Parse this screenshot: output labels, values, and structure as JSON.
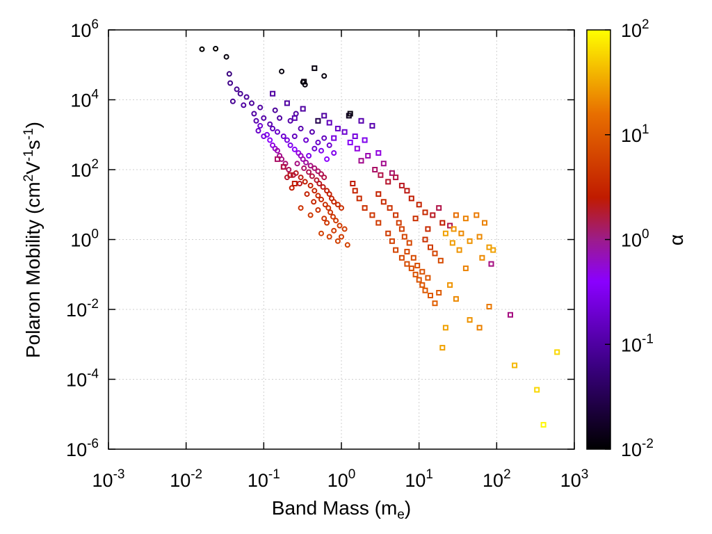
{
  "chart_data": {
    "type": "scatter",
    "xlabel": {
      "main": "Band Mass (m",
      "sub": "e",
      "close": ")"
    },
    "ylabel": {
      "main": "Polaron Mobility (cm",
      "sup1": "2",
      "mid1": "V",
      "sup2": "-1",
      "mid2": "s",
      "sup3": "-1",
      "close": ")"
    },
    "colorbar_label": "α",
    "x_scale": "log",
    "y_scale": "log",
    "xlim": [
      0.001,
      1000
    ],
    "ylim": [
      1e-06,
      1000000
    ],
    "color_scale": "log",
    "color_lim": [
      0.01,
      100
    ],
    "colormap": [
      "#000000",
      "#3b0082",
      "#8a00ff",
      "#c01b00",
      "#e86f00",
      "#ffff00"
    ],
    "grid": true,
    "x_ticks": [
      {
        "base": "10",
        "exp": "-3"
      },
      {
        "base": "10",
        "exp": "-2"
      },
      {
        "base": "10",
        "exp": "-1"
      },
      {
        "base": "10",
        "exp": "0"
      },
      {
        "base": "10",
        "exp": "1"
      },
      {
        "base": "10",
        "exp": "2"
      },
      {
        "base": "10",
        "exp": "3"
      }
    ],
    "y_ticks": [
      {
        "base": "10",
        "exp": "-6"
      },
      {
        "base": "10",
        "exp": "-4"
      },
      {
        "base": "10",
        "exp": "-2"
      },
      {
        "base": "10",
        "exp": "0"
      },
      {
        "base": "10",
        "exp": "2"
      },
      {
        "base": "10",
        "exp": "4"
      },
      {
        "base": "10",
        "exp": "6"
      }
    ],
    "color_ticks": [
      {
        "base": "10",
        "exp": "-2"
      },
      {
        "base": "10",
        "exp": "-1"
      },
      {
        "base": "10",
        "exp": "0"
      },
      {
        "base": "10",
        "exp": "1"
      },
      {
        "base": "10",
        "exp": "2"
      }
    ],
    "series": [
      {
        "marker": "circle",
        "points": [
          [
            0.016,
            280000,
            0.01
          ],
          [
            0.024,
            290000,
            0.01
          ],
          [
            0.033,
            170000,
            0.012
          ],
          [
            0.17,
            65000,
            0.012
          ],
          [
            0.6,
            48000,
            0.012
          ],
          [
            0.32,
            32000,
            0.012
          ],
          [
            0.34,
            27000,
            0.012
          ],
          [
            0.036,
            55000,
            0.06
          ],
          [
            0.037,
            30000,
            0.07
          ],
          [
            0.045,
            20000,
            0.08
          ],
          [
            0.05,
            15000,
            0.08
          ],
          [
            0.06,
            12000,
            0.09
          ],
          [
            0.04,
            9000,
            0.08
          ],
          [
            0.055,
            7000,
            0.1
          ],
          [
            0.07,
            8000,
            0.09
          ],
          [
            0.09,
            6000,
            0.1
          ],
          [
            0.075,
            4000,
            0.1
          ],
          [
            0.1,
            3000,
            0.11
          ],
          [
            0.08,
            2500,
            0.12
          ],
          [
            0.12,
            2000,
            0.12
          ],
          [
            0.13,
            1500,
            0.15
          ],
          [
            0.15,
            1200,
            0.18
          ],
          [
            0.18,
            900,
            0.2
          ],
          [
            0.2,
            700,
            0.25
          ],
          [
            0.22,
            500,
            0.3
          ],
          [
            0.25,
            380,
            0.4
          ],
          [
            0.28,
            300,
            0.5
          ],
          [
            0.3,
            250,
            0.6
          ],
          [
            0.32,
            200,
            0.7
          ],
          [
            0.35,
            160,
            0.8
          ],
          [
            0.4,
            130,
            1.0
          ],
          [
            0.45,
            110,
            1.1
          ],
          [
            0.5,
            90,
            1.2
          ],
          [
            0.55,
            75,
            1.4
          ],
          [
            0.6,
            60,
            1.5
          ],
          [
            0.27,
            150,
            1.0
          ],
          [
            0.33,
            110,
            1.2
          ],
          [
            0.38,
            85,
            1.4
          ],
          [
            0.42,
            65,
            1.6
          ],
          [
            0.48,
            50,
            1.8
          ],
          [
            0.52,
            40,
            2.0
          ],
          [
            0.58,
            32,
            2.2
          ],
          [
            0.65,
            25,
            2.5
          ],
          [
            0.7,
            20,
            2.7
          ],
          [
            0.75,
            15,
            3.0
          ],
          [
            0.8,
            12,
            3.2
          ],
          [
            0.9,
            10,
            3.5
          ],
          [
            1.0,
            8,
            3.8
          ],
          [
            0.26,
            80,
            2.0
          ],
          [
            0.3,
            60,
            2.2
          ],
          [
            0.34,
            45,
            2.5
          ],
          [
            0.4,
            35,
            2.7
          ],
          [
            0.45,
            25,
            3.0
          ],
          [
            0.5,
            18,
            3.3
          ],
          [
            0.55,
            14,
            3.5
          ],
          [
            0.62,
            10,
            3.8
          ],
          [
            0.68,
            8,
            4.0
          ],
          [
            0.72,
            6,
            4.2
          ],
          [
            0.78,
            4.5,
            4.5
          ],
          [
            0.85,
            3.5,
            4.8
          ],
          [
            0.95,
            2.5,
            5.0
          ],
          [
            1.1,
            2.0,
            5.2
          ],
          [
            0.55,
            1.5,
            5.5
          ],
          [
            0.7,
            1.2,
            5.5
          ],
          [
            0.4,
            5,
            4.5
          ],
          [
            0.3,
            8,
            4.0
          ],
          [
            0.23,
            30,
            2.5
          ],
          [
            0.2,
            60,
            1.8
          ],
          [
            0.18,
            120,
            1.2
          ],
          [
            0.16,
            250,
            0.9
          ],
          [
            0.14,
            400,
            0.6
          ],
          [
            0.12,
            700,
            0.4
          ],
          [
            0.11,
            1000,
            0.3
          ],
          [
            0.09,
            1800,
            0.2
          ],
          [
            0.085,
            1300,
            0.18
          ],
          [
            0.1,
            900,
            0.25
          ],
          [
            0.13,
            500,
            0.5
          ],
          [
            0.15,
            350,
            0.7
          ],
          [
            0.17,
            200,
            1.0
          ],
          [
            0.19,
            150,
            1.1
          ],
          [
            0.21,
            100,
            1.3
          ],
          [
            0.24,
            70,
            1.6
          ],
          [
            0.29,
            40,
            2.0
          ],
          [
            0.36,
            20,
            2.8
          ],
          [
            0.44,
            12,
            3.2
          ],
          [
            0.5,
            7,
            3.8
          ],
          [
            0.6,
            4,
            4.2
          ],
          [
            0.65,
            3,
            4.5
          ],
          [
            0.8,
            1.8,
            5.0
          ],
          [
            1.0,
            1.2,
            5.2
          ],
          [
            0.9,
            0.9,
            5.5
          ],
          [
            1.2,
            0.7,
            5.8
          ],
          [
            0.38,
            250,
            0.3
          ],
          [
            0.45,
            400,
            0.2
          ],
          [
            0.5,
            600,
            0.18
          ],
          [
            0.6,
            800,
            0.15
          ],
          [
            0.7,
            500,
            0.2
          ],
          [
            0.8,
            300,
            0.3
          ],
          [
            0.42,
            1200,
            0.12
          ],
          [
            0.3,
            1500,
            0.12
          ],
          [
            0.25,
            900,
            0.15
          ],
          [
            0.35,
            700,
            0.2
          ],
          [
            0.55,
            350,
            0.3
          ],
          [
            0.65,
            200,
            0.4
          ],
          [
            0.26,
            4000,
            0.1
          ],
          [
            0.22,
            2500,
            0.11
          ],
          [
            0.16,
            3000,
            0.1
          ],
          [
            0.14,
            5000,
            0.09
          ]
        ]
      },
      {
        "marker": "square",
        "points": [
          [
            0.45,
            80000,
            0.012
          ],
          [
            0.33,
            33000,
            0.012
          ],
          [
            1.3,
            4000,
            0.012
          ],
          [
            1.25,
            3500,
            0.015
          ],
          [
            0.5,
            2500,
            0.03
          ],
          [
            0.13,
            15000,
            0.1
          ],
          [
            0.2,
            8000,
            0.1
          ],
          [
            0.32,
            5500,
            0.1
          ],
          [
            0.6,
            3500,
            0.1
          ],
          [
            0.25,
            3000,
            0.12
          ],
          [
            0.7,
            2200,
            0.15
          ],
          [
            1.8,
            2500,
            0.12
          ],
          [
            2.5,
            1800,
            0.12
          ],
          [
            0.9,
            1500,
            0.18
          ],
          [
            1.1,
            1200,
            0.2
          ],
          [
            1.5,
            900,
            0.25
          ],
          [
            2.0,
            700,
            0.3
          ],
          [
            0.8,
            800,
            0.25
          ],
          [
            1.3,
            600,
            0.35
          ],
          [
            1.6,
            400,
            0.5
          ],
          [
            3.0,
            300,
            0.5
          ],
          [
            2.2,
            250,
            0.7
          ],
          [
            1.8,
            180,
            0.9
          ],
          [
            3.5,
            150,
            0.9
          ],
          [
            4.5,
            80,
            1.2
          ],
          [
            5.0,
            60,
            1.5
          ],
          [
            2.7,
            100,
            1.2
          ],
          [
            3.2,
            70,
            1.5
          ],
          [
            4.0,
            45,
            1.8
          ],
          [
            6.0,
            35,
            2.0
          ],
          [
            7.0,
            25,
            2.2
          ],
          [
            8.0,
            15,
            2.5
          ],
          [
            10,
            10,
            3.0
          ],
          [
            12,
            6,
            3.5
          ],
          [
            9,
            4,
            4.0
          ],
          [
            15,
            5,
            2.0
          ],
          [
            20,
            3,
            2.5
          ],
          [
            25,
            2.5,
            1.5
          ],
          [
            18,
            8,
            1.5
          ],
          [
            13,
            2,
            3.5
          ],
          [
            30,
            5,
            15
          ],
          [
            40,
            4,
            20
          ],
          [
            55,
            5,
            18
          ],
          [
            70,
            3,
            20
          ],
          [
            28,
            2,
            25
          ],
          [
            35,
            1.5,
            22
          ],
          [
            45,
            0.9,
            25
          ],
          [
            60,
            1.2,
            22
          ],
          [
            80,
            0.6,
            28
          ],
          [
            90,
            0.5,
            30
          ],
          [
            85,
            0.2,
            1.0
          ],
          [
            22,
            1.5,
            30
          ],
          [
            27,
            0.8,
            28
          ],
          [
            33,
            0.5,
            25
          ],
          [
            65,
            0.3,
            22
          ],
          [
            40,
            0.15,
            20
          ],
          [
            25,
            0.05,
            25
          ],
          [
            30,
            0.02,
            22
          ],
          [
            45,
            0.005,
            25
          ],
          [
            60,
            0.003,
            20
          ],
          [
            80,
            0.012,
            18
          ],
          [
            20,
            0.0008,
            30
          ],
          [
            22,
            0.003,
            30
          ],
          [
            150,
            0.007,
            1.0
          ],
          [
            170,
            0.00025,
            40
          ],
          [
            330,
            5e-05,
            60
          ],
          [
            400,
            5e-06,
            90
          ],
          [
            600,
            0.0006,
            60
          ],
          [
            3.0,
            20,
            3.0
          ],
          [
            3.5,
            12,
            3.5
          ],
          [
            4.2,
            8,
            4.0
          ],
          [
            5.0,
            5,
            4.5
          ],
          [
            5.5,
            3,
            5.0
          ],
          [
            6.0,
            2,
            5.5
          ],
          [
            6.5,
            1.2,
            6.0
          ],
          [
            7.5,
            0.8,
            6.5
          ],
          [
            4.0,
            1.5,
            5.0
          ],
          [
            4.5,
            0.9,
            5.5
          ],
          [
            5.0,
            0.5,
            6.0
          ],
          [
            6.0,
            0.3,
            6.5
          ],
          [
            7.0,
            0.2,
            7.0
          ],
          [
            8.0,
            0.15,
            7.5
          ],
          [
            9.0,
            0.1,
            8.0
          ],
          [
            10,
            0.07,
            8.5
          ],
          [
            11,
            0.05,
            9.0
          ],
          [
            12,
            0.035,
            9.5
          ],
          [
            14,
            0.025,
            10
          ],
          [
            16,
            0.015,
            11
          ],
          [
            18,
            0.03,
            10
          ],
          [
            13,
            0.08,
            9
          ],
          [
            11,
            0.12,
            8
          ],
          [
            9.5,
            0.18,
            7.5
          ],
          [
            8.5,
            0.3,
            7.0
          ],
          [
            7.0,
            0.45,
            6.5
          ],
          [
            3.0,
            3.0,
            5.0
          ],
          [
            2.5,
            5,
            4.5
          ],
          [
            2.0,
            8,
            4.0
          ],
          [
            1.7,
            15,
            3.5
          ],
          [
            1.5,
            25,
            3.0
          ],
          [
            1.4,
            40,
            2.5
          ],
          [
            0.15,
            200,
            1.2
          ],
          [
            0.18,
            120,
            1.5
          ],
          [
            0.22,
            70,
            2.0
          ],
          [
            0.25,
            40,
            2.5
          ],
          [
            16,
            0.4,
            6.0
          ],
          [
            19,
            0.25,
            7.0
          ],
          [
            14,
            0.6,
            5.0
          ],
          [
            12,
            1.0,
            4.0
          ]
        ]
      }
    ]
  }
}
